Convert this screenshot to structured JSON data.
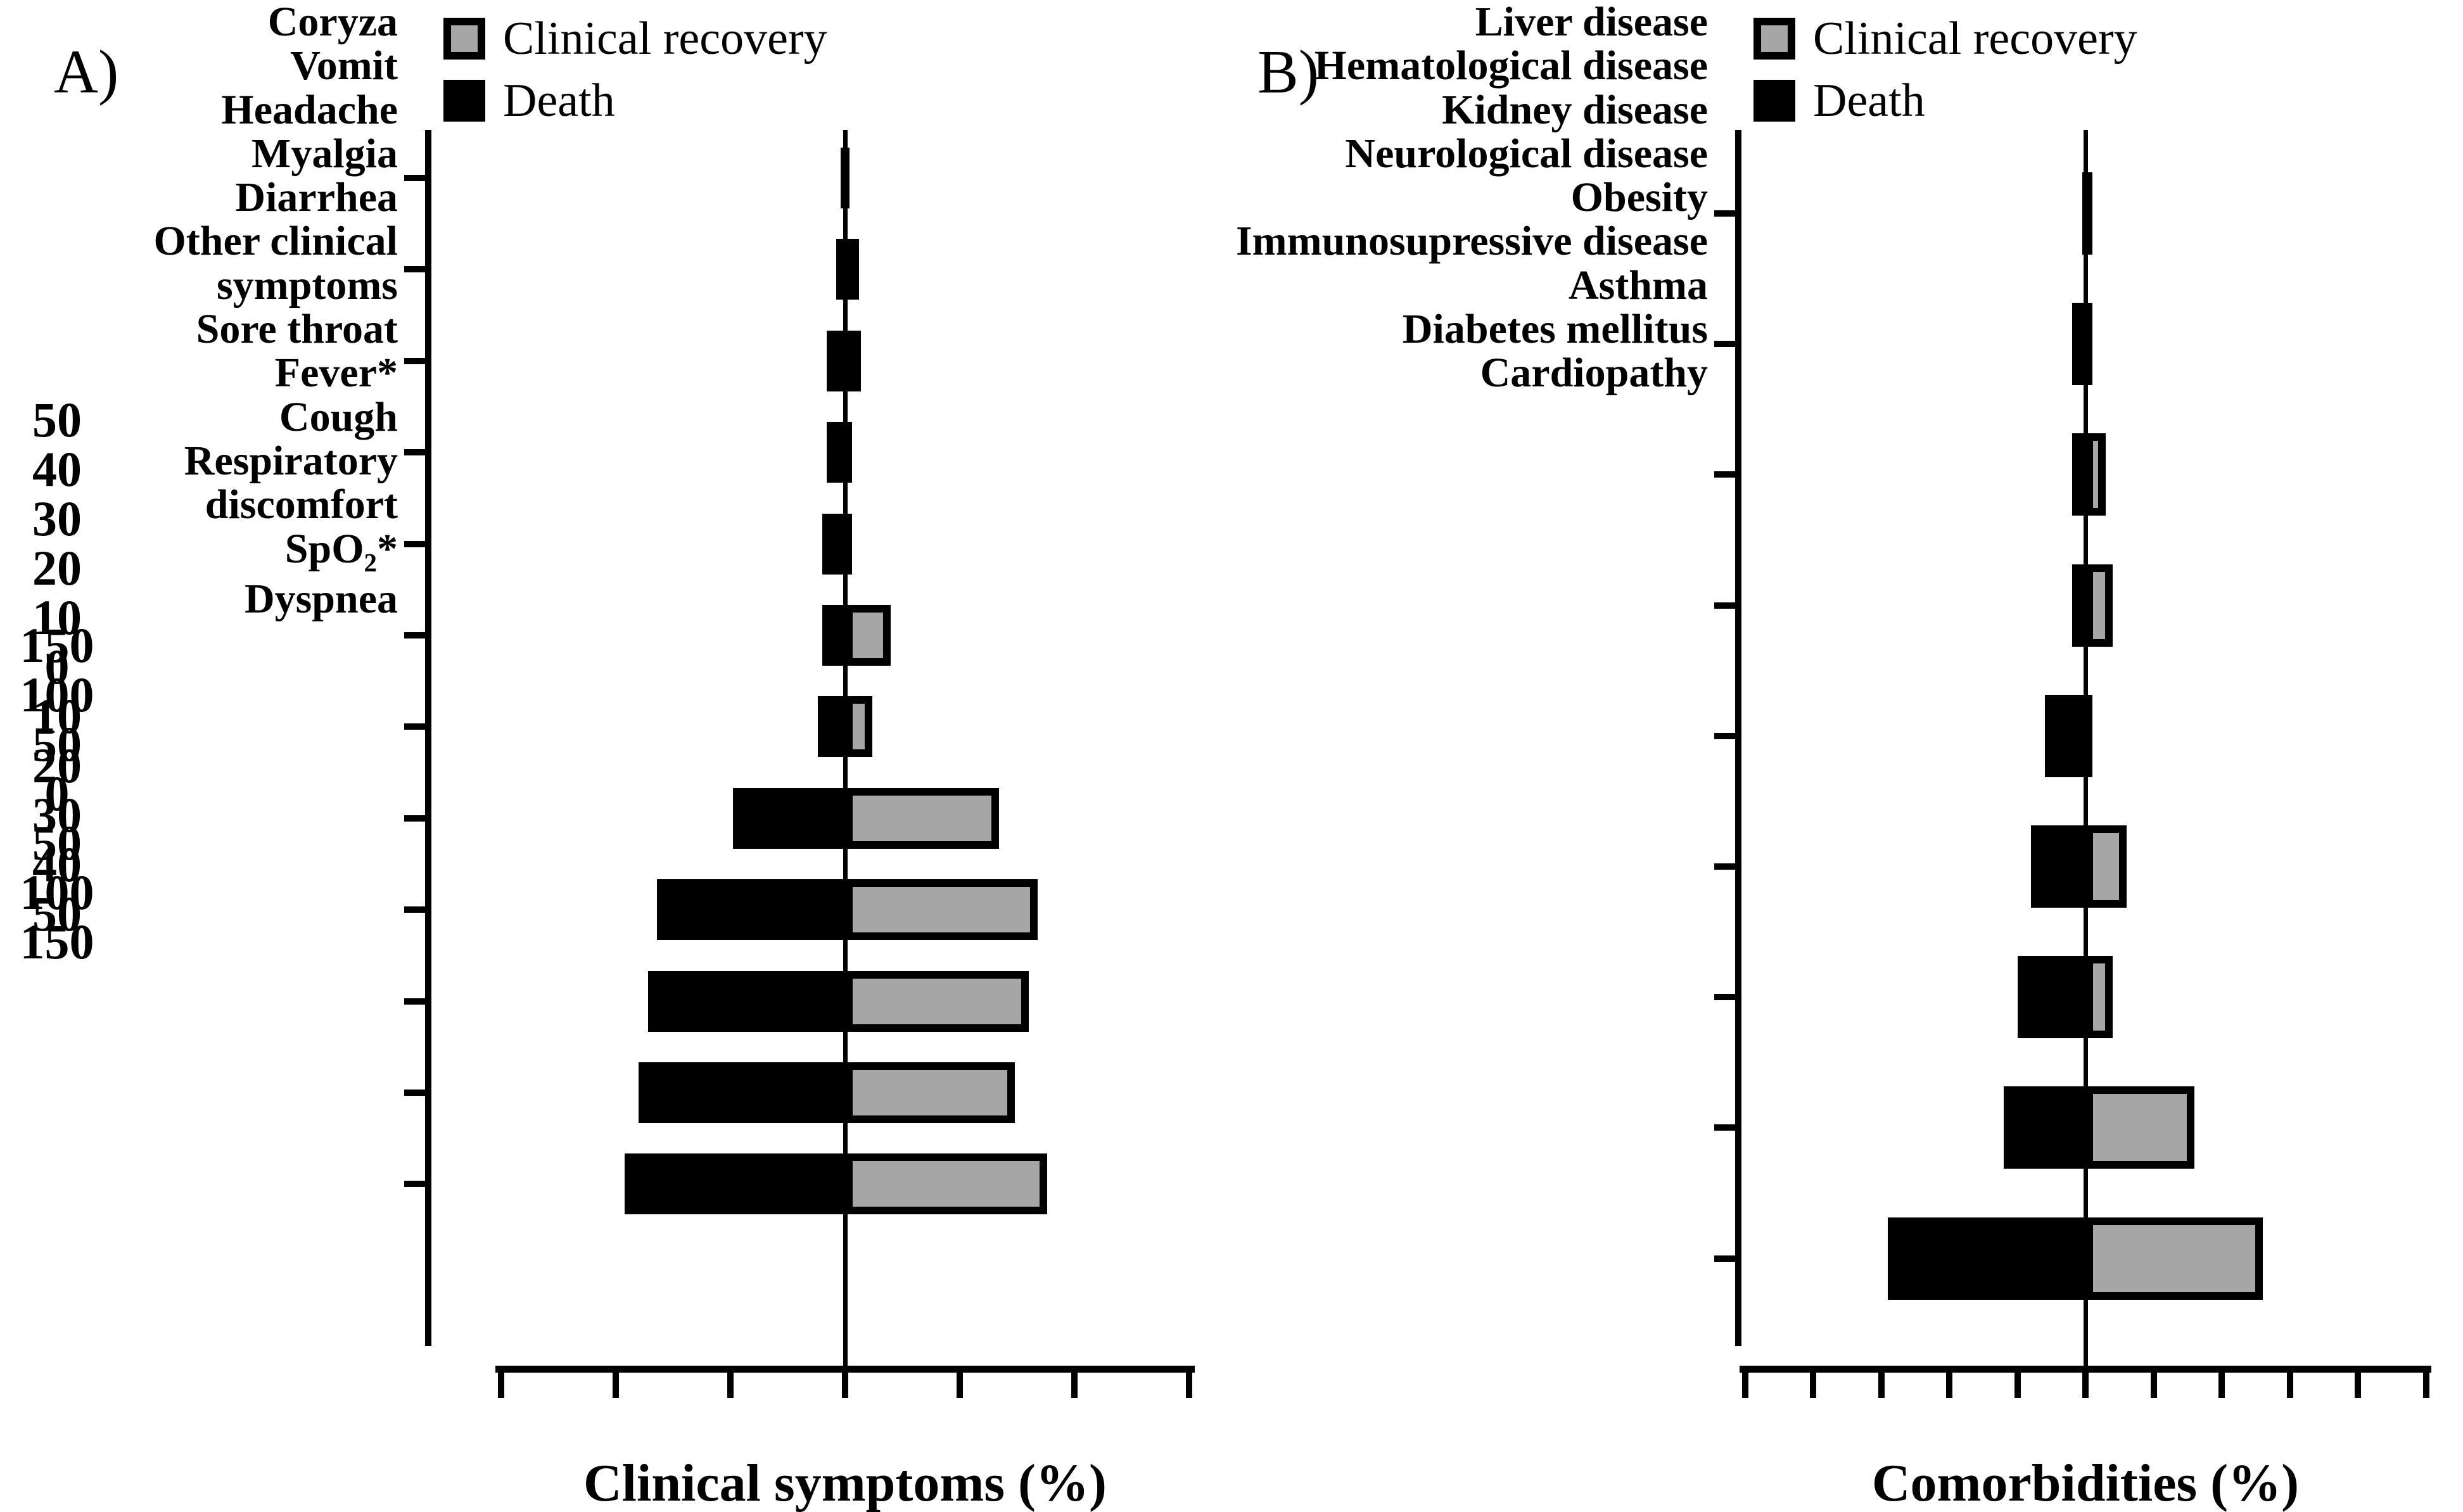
{
  "figure": {
    "background": "#FFFFFF",
    "death_color": "#000000",
    "recovery_color": "#A6A6A6",
    "border_color": "#000000"
  },
  "chart_data": [
    {
      "type": "bar",
      "panel_label": "A)",
      "orientation": "horizontal-diverging",
      "title": "",
      "xlabel": "Clinical symptoms (%)",
      "legend": [
        "Clinical recovery",
        "Death"
      ],
      "legend_position": "top-left",
      "xlim": [
        -150,
        150
      ],
      "axis_ticks": [
        "150",
        "100",
        "50",
        "0",
        "50",
        "100",
        "150"
      ],
      "grid": false,
      "categories": [
        "Coryza",
        "Vomit",
        "Headache",
        "Myalgia",
        "Diarrhea",
        "Other clinical symptoms",
        "Sore throat",
        "Fever*",
        "Cough",
        "Respiratory discomfort",
        "SpO2*",
        "Dyspnea"
      ],
      "series": [
        {
          "name": "Death",
          "side": "left",
          "color": "#000000",
          "values": [
            2,
            4,
            8,
            8,
            10,
            10,
            12,
            49,
            82,
            86,
            90,
            96
          ]
        },
        {
          "name": "Clinical recovery",
          "side": "right",
          "color": "#A6A6A6",
          "values": [
            2,
            6,
            7,
            3,
            3,
            20,
            12,
            67,
            84,
            80,
            74,
            88
          ]
        }
      ]
    },
    {
      "type": "bar",
      "panel_label": "B)",
      "orientation": "horizontal-diverging",
      "title": "",
      "xlabel": "Comorbidities (%)",
      "legend": [
        "Clinical recovery",
        "Death"
      ],
      "legend_position": "top-left",
      "xlim": [
        -50,
        50
      ],
      "axis_ticks": [
        "50",
        "40",
        "30",
        "20",
        "10",
        "0",
        "10",
        "20",
        "30",
        "40",
        "50"
      ],
      "grid": false,
      "categories": [
        "Liver disease",
        "Hematological disease",
        "Kidney disease",
        "Neurological disease",
        "Obesity",
        "Immunosupressive disease",
        "Asthma",
        "Diabetes mellitus",
        "Cardiopathy"
      ],
      "series": [
        {
          "name": "Death",
          "side": "left",
          "color": "#000000",
          "values": [
            0.5,
            2,
            2,
            2,
            6,
            8,
            10,
            12,
            29
          ]
        },
        {
          "name": "Clinical recovery",
          "side": "right",
          "color": "#A6A6A6",
          "values": [
            1,
            1,
            3,
            4,
            1,
            6,
            4,
            16,
            26
          ]
        }
      ]
    }
  ]
}
